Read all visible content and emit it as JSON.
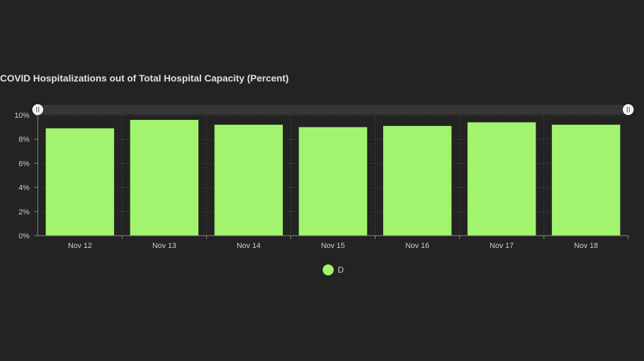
{
  "chart_data": {
    "type": "bar",
    "title": "COVID Hospitalizations out of Total Hospital Capacity (Percent)",
    "categories": [
      "Nov 12",
      "Nov 13",
      "Nov 14",
      "Nov 15",
      "Nov 16",
      "Nov 17",
      "Nov 18"
    ],
    "series": [
      {
        "name": "D",
        "values": [
          8.9,
          9.6,
          9.2,
          9.0,
          9.1,
          9.4,
          9.2
        ]
      }
    ],
    "ylim": [
      0,
      10
    ],
    "yticks": [
      "0%",
      "2%",
      "4%",
      "6%",
      "8%",
      "10%"
    ],
    "grid": true,
    "legend_position": "bottom-center",
    "colors": {
      "bar": "#a2f46f",
      "background": "#232323",
      "text": "#cfcfcf",
      "grid": "#444444"
    }
  }
}
